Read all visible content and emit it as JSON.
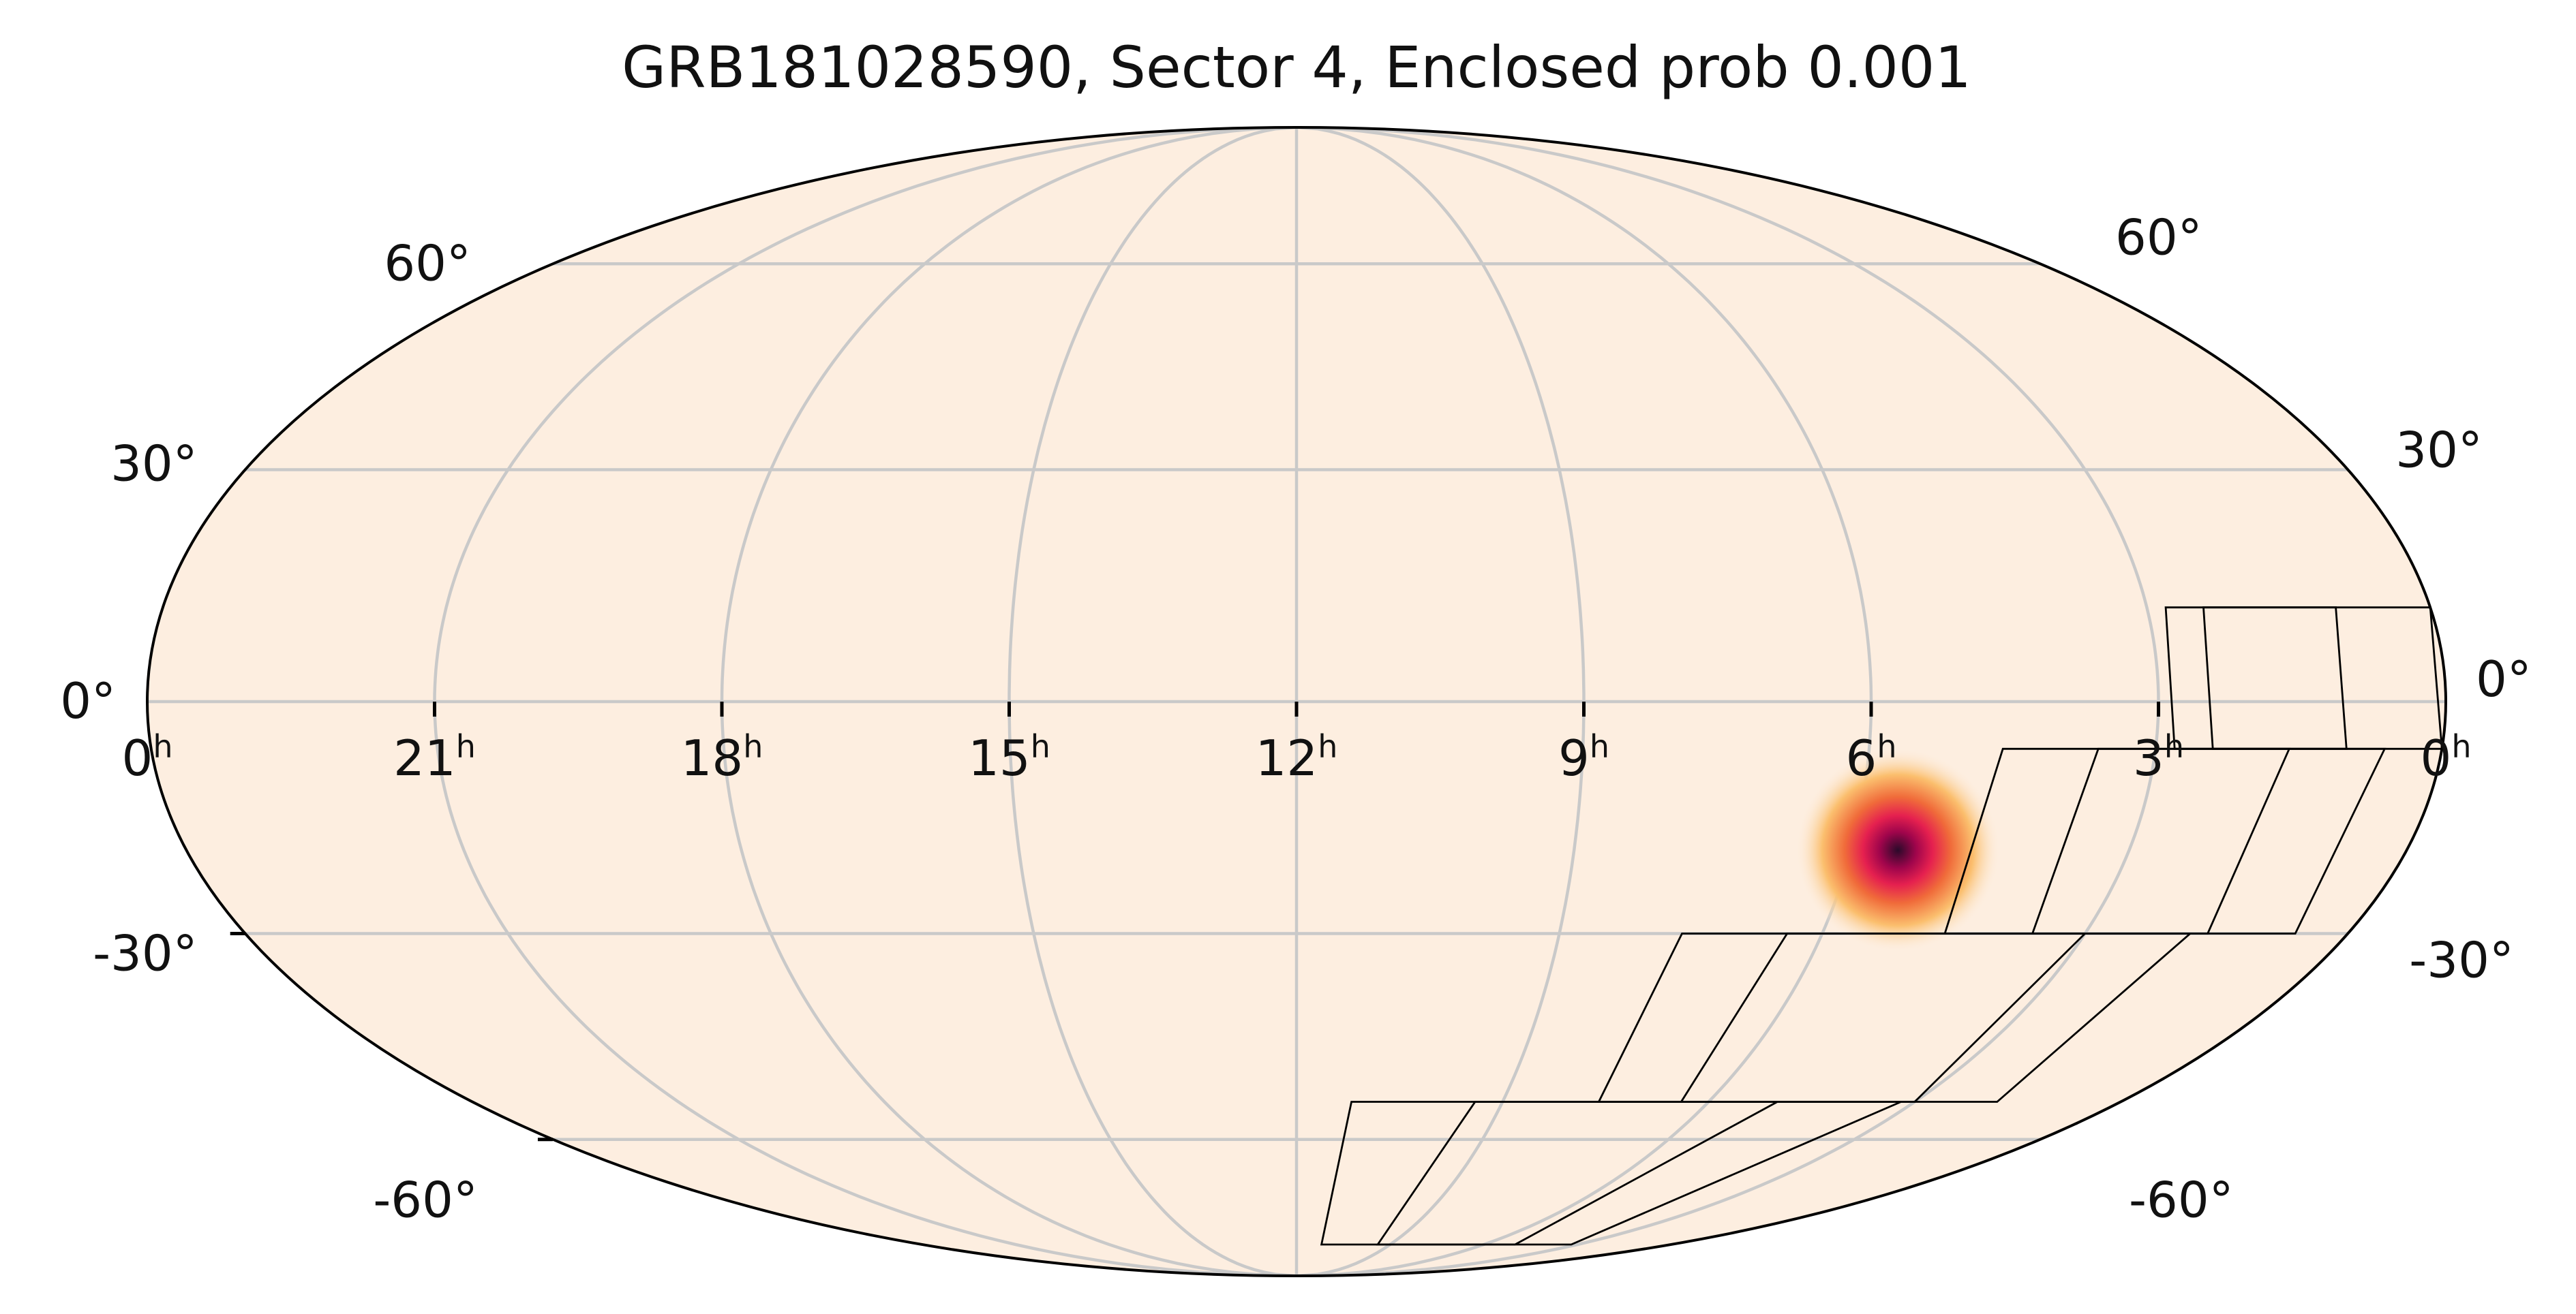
{
  "title": "GRB181028590, Sector 4, Enclosed prob 0.001",
  "map": {
    "projection": "mollweide",
    "background_color": "#fdeee0",
    "probability_colormap": [
      "#fdeee0",
      "#fbbf6e",
      "#f06b3a",
      "#e5204f",
      "#a0054c",
      "#2b0a2a"
    ],
    "grid": true,
    "grid_color": "#c9c9c9",
    "hotspot": {
      "ra_hours": 5.5,
      "dec_deg": -19
    }
  },
  "ra_labels": [
    {
      "value": "0",
      "unit": "h",
      "ra_hours": 24
    },
    {
      "value": "21",
      "unit": "h",
      "ra_hours": 21
    },
    {
      "value": "18",
      "unit": "h",
      "ra_hours": 18
    },
    {
      "value": "15",
      "unit": "h",
      "ra_hours": 15
    },
    {
      "value": "12",
      "unit": "h",
      "ra_hours": 12
    },
    {
      "value": "9",
      "unit": "h",
      "ra_hours": 9
    },
    {
      "value": "6",
      "unit": "h",
      "ra_hours": 6
    },
    {
      "value": "3",
      "unit": "h",
      "ra_hours": 3
    },
    {
      "value": "0",
      "unit": "h",
      "ra_hours": 0
    }
  ],
  "dec_labels_left": [
    {
      "text": "60°",
      "dec_deg": 60
    },
    {
      "text": "30°",
      "dec_deg": 30
    },
    {
      "text": "0°",
      "dec_deg": 0
    },
    {
      "text": "-30°",
      "dec_deg": -30
    },
    {
      "text": "-60°",
      "dec_deg": -60
    }
  ],
  "dec_labels_right": [
    {
      "text": "60°",
      "dec_deg": 60
    },
    {
      "text": "30°",
      "dec_deg": 30
    },
    {
      "text": "0°",
      "dec_deg": 0
    },
    {
      "text": "-30°",
      "dec_deg": -30
    },
    {
      "text": "-60°",
      "dec_deg": -60
    }
  ],
  "tess_sector": {
    "sector": 4,
    "camera_fields": [
      {
        "ra_start": 0.0,
        "ra_end": 2.4,
        "dec_start": -6,
        "dec_end": 12
      },
      {
        "ra_start": 1.0,
        "ra_end": 2.8,
        "dec_start": -6,
        "dec_end": 12
      },
      {
        "ra_start": 0.6,
        "ra_end": 3.6,
        "dec_start": -30,
        "dec_end": -6
      },
      {
        "ra_start": 1.6,
        "ra_end": 4.6,
        "dec_start": -30,
        "dec_end": -6
      },
      {
        "ra_start": 1.8,
        "ra_end": 6.4,
        "dec_start": -54,
        "dec_end": -30
      },
      {
        "ra_start": 3.0,
        "ra_end": 7.6,
        "dec_start": -54,
        "dec_end": -30
      },
      {
        "ra_start": 3.2,
        "ra_end": 9.4,
        "dec_start": -80,
        "dec_end": -54
      },
      {
        "ra_start": 5.0,
        "ra_end": 11.2,
        "dec_start": -80,
        "dec_end": -54
      }
    ]
  }
}
